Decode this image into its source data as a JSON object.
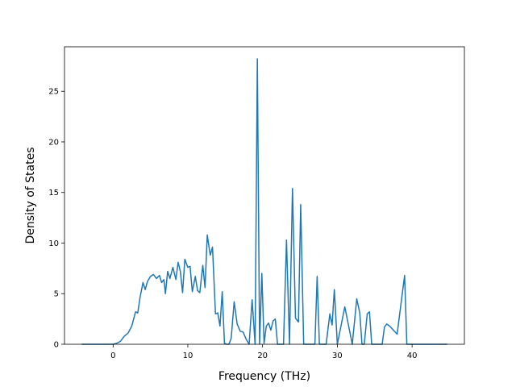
{
  "chart_data": {
    "type": "line",
    "title": "",
    "xlabel": "Frequency (THz)",
    "ylabel": "Density of States",
    "xlim": [
      -6.5,
      47.0
    ],
    "ylim": [
      0,
      29.4
    ],
    "xticks": [
      0,
      10,
      20,
      30,
      40
    ],
    "yticks": [
      0,
      5,
      10,
      15,
      20,
      25
    ],
    "grid": false,
    "legend": "none",
    "series": [
      {
        "color": "#1f77b4",
        "x": [
          -4.2,
          -2.0,
          0.0,
          0.5,
          1.0,
          1.5,
          2.0,
          2.5,
          3.0,
          3.3,
          3.6,
          4.0,
          4.3,
          4.6,
          5.0,
          5.4,
          5.8,
          6.2,
          6.5,
          6.8,
          7.0,
          7.3,
          7.6,
          8.0,
          8.4,
          8.7,
          9.0,
          9.3,
          9.6,
          10.0,
          10.3,
          10.6,
          11.0,
          11.3,
          11.6,
          12.0,
          12.3,
          12.6,
          13.0,
          13.3,
          13.7,
          14.0,
          14.3,
          14.6,
          14.9,
          15.2,
          15.5,
          15.8,
          16.2,
          16.6,
          17.0,
          17.4,
          17.8,
          18.2,
          18.6,
          19.0,
          19.3,
          19.6,
          19.9,
          20.2,
          20.5,
          20.8,
          21.1,
          21.4,
          21.7,
          22.0,
          22.4,
          22.8,
          23.2,
          23.6,
          24.0,
          24.4,
          24.8,
          25.1,
          25.5,
          25.8,
          26.1,
          26.4,
          26.7,
          27.0,
          27.3,
          27.6,
          28.0,
          28.5,
          29.0,
          29.3,
          29.6,
          30.0,
          31.0,
          32.0,
          32.6,
          33.0,
          33.3,
          33.6,
          34.0,
          34.3,
          34.6,
          35.0,
          35.3,
          35.6,
          36.0,
          36.3,
          36.6,
          37.0,
          38.0,
          39.0,
          39.3,
          39.6,
          40.0,
          40.3,
          40.6,
          41.0,
          42.0,
          44.7
        ],
        "y": [
          0.0,
          0.0,
          0.0,
          0.1,
          0.3,
          0.8,
          1.1,
          1.8,
          3.2,
          3.1,
          4.6,
          6.1,
          5.4,
          6.2,
          6.7,
          6.9,
          6.5,
          6.8,
          6.1,
          6.4,
          5.0,
          7.2,
          6.5,
          7.6,
          6.4,
          8.1,
          7.2,
          5.1,
          8.4,
          7.6,
          7.7,
          5.2,
          6.7,
          5.3,
          5.1,
          7.8,
          5.6,
          10.8,
          8.8,
          9.6,
          3.0,
          3.1,
          1.8,
          5.2,
          0.1,
          0.0,
          0.0,
          0.6,
          4.2,
          2.0,
          1.3,
          1.2,
          0.5,
          0.0,
          4.4,
          0.0,
          28.2,
          0.0,
          7.0,
          0.1,
          1.8,
          2.1,
          1.4,
          2.3,
          2.5,
          0.0,
          0.0,
          0.0,
          10.3,
          0.0,
          15.4,
          2.6,
          2.2,
          13.8,
          0.0,
          0.0,
          0.0,
          0.0,
          0.0,
          0.0,
          6.7,
          0.0,
          0.0,
          0.0,
          3.0,
          1.9,
          5.4,
          0.0,
          3.7,
          0.0,
          4.5,
          3.1,
          0.0,
          0.0,
          3.0,
          3.2,
          0.0,
          0.0,
          0.0,
          0.0,
          0.0,
          1.7,
          2.0,
          1.8,
          1.0,
          6.8,
          0.0,
          0.0,
          0.0,
          0.0,
          0.0,
          0.0,
          0.0,
          0.0
        ]
      }
    ]
  }
}
